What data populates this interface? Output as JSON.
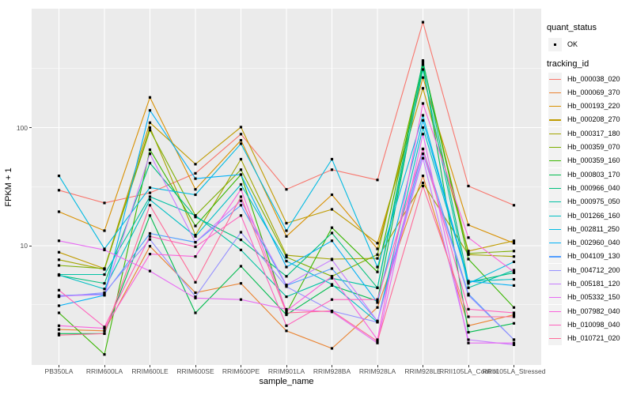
{
  "y_axis": {
    "title": "FPKM + 1",
    "ticks": [
      {
        "label": "100",
        "value": 100
      },
      {
        "label": "10",
        "value": 10
      }
    ],
    "minor_values": [
      316.2,
      31.62,
      3.162
    ]
  },
  "x_axis": {
    "title": "sample_name",
    "categories": [
      "PB350LA",
      "RRIM600LA",
      "RRIM600LE",
      "RRIM600SE",
      "RRIM600PE",
      "RRIM901LA",
      "RRIM928BA",
      "RRIM928LA",
      "RRIM928LE",
      "RRII105LA_Control",
      "RRII105LA_Stressed"
    ]
  },
  "legend": {
    "quant_status": {
      "title": "quant_status",
      "entries": [
        {
          "label": "OK",
          "symbol": "black-point"
        }
      ]
    },
    "tracking_id": {
      "title": "tracking_id"
    }
  },
  "colors": {
    "panel_bg": "#EBEBEB",
    "grid": "#FFFFFF",
    "tick_text": "#4D4D4D",
    "axis_text": "#000000",
    "point": "#000000",
    "legend_key_bg": "#F2F2F2"
  },
  "chart_data": {
    "type": "line",
    "title": "",
    "xlabel": "sample_name",
    "ylabel": "FPKM + 1",
    "y_scale": "log10",
    "ylim": [
      1,
      1000
    ],
    "grid": true,
    "legend_position": "right",
    "point_shape": "small-black-square",
    "categories": [
      "PB350LA",
      "RRIM600LA",
      "RRIM600LE",
      "RRIM600SE",
      "RRIM600PE",
      "RRIM901LA",
      "RRIM928BA",
      "RRIM928LA",
      "RRIM928LE",
      "RRII105LA_Control",
      "RRII105LA_Stressed"
    ],
    "series": [
      {
        "name": "Hb_000038_020",
        "color": "#F8766D",
        "values": [
          29.5,
          23,
          28,
          41,
          88,
          30,
          44,
          36,
          780,
          32,
          22
        ]
      },
      {
        "name": "Hb_000069_370",
        "color": "#EA8331",
        "values": [
          1.95,
          1.9,
          9.9,
          4.0,
          4.8,
          1.9,
          1.35,
          3.0,
          39,
          2.1,
          2.6
        ]
      },
      {
        "name": "Hb_000193_220",
        "color": "#D89000",
        "values": [
          19.4,
          13.4,
          180,
          30,
          78,
          12,
          27,
          9.4,
          265,
          15,
          10.5
        ]
      },
      {
        "name": "Hb_000208_270",
        "color": "#C09B00",
        "values": [
          8.8,
          6.4,
          110,
          49,
          101,
          15.5,
          20.3,
          10.5,
          215,
          9.0,
          11
        ]
      },
      {
        "name": "Hb_000317_180",
        "color": "#A3A500",
        "values": [
          7.6,
          6.3,
          100,
          12.3,
          54,
          8.3,
          7.7,
          7.8,
          34,
          8.4,
          8.1
        ]
      },
      {
        "name": "Hb_000359_070",
        "color": "#7CAE00",
        "values": [
          6.8,
          6.4,
          95,
          18,
          44,
          8.0,
          5.5,
          8.4,
          350,
          8.6,
          9.0
        ]
      },
      {
        "name": "Hb_000359_160",
        "color": "#39B600",
        "values": [
          2.7,
          1.2,
          65,
          14.7,
          40,
          2.7,
          14.2,
          6.0,
          360,
          7.7,
          3.0
        ]
      },
      {
        "name": "Hb_000803_170",
        "color": "#00BB4E",
        "values": [
          1.8,
          1.8,
          18,
          2.7,
          6.7,
          2.6,
          4.6,
          3.4,
          340,
          1.85,
          2.2
        ]
      },
      {
        "name": "Hb_000966_040",
        "color": "#00BF7D",
        "values": [
          5.6,
          4.8,
          50,
          17.5,
          11.2,
          5.5,
          12.8,
          4.4,
          370,
          4.9,
          5.9
        ]
      },
      {
        "name": "Hb_000975_050",
        "color": "#00C1A3",
        "values": [
          5.7,
          5.7,
          26,
          18,
          9.2,
          3.7,
          5.3,
          4.4,
          310,
          4.4,
          6.2
        ]
      },
      {
        "name": "Hb_001266_160",
        "color": "#00BFC4",
        "values": [
          5.65,
          4.3,
          24.5,
          12.0,
          33,
          7.4,
          4.7,
          2.25,
          100,
          5.0,
          5.2
        ]
      },
      {
        "name": "Hb_002811_250",
        "color": "#00BAE2",
        "values": [
          39,
          9.4,
          31,
          27,
          73,
          13.4,
          54,
          6.6,
          127,
          4.8,
          7.3
        ]
      },
      {
        "name": "Hb_002960_040",
        "color": "#00B0F6",
        "values": [
          3.1,
          3.8,
          140,
          37,
          40,
          6.6,
          11,
          3.3,
          115,
          5.0,
          4.6
        ]
      },
      {
        "name": "Hb_004109_130",
        "color": "#529EFF",
        "values": [
          3.78,
          3.9,
          12.7,
          10.7,
          22,
          4.6,
          6.4,
          2.3,
          66,
          3.9,
          1.6
        ]
      },
      {
        "name": "Hb_004712_200",
        "color": "#9590FF",
        "values": [
          3.7,
          4.0,
          11.3,
          3.7,
          13,
          4.5,
          2.8,
          2.25,
          60,
          3.8,
          1.6
        ]
      },
      {
        "name": "Hb_005181_120",
        "color": "#C77CFF",
        "values": [
          3.75,
          3.85,
          60,
          10.7,
          24,
          4.65,
          7.6,
          2.3,
          55,
          1.6,
          1.45
        ]
      },
      {
        "name": "Hb_005332_150",
        "color": "#E76BF3",
        "values": [
          11,
          9.2,
          6.1,
          3.6,
          3.5,
          2.9,
          2.75,
          1.5,
          88,
          1.5,
          1.5
        ]
      },
      {
        "name": "Hb_007982_040",
        "color": "#FA62DB",
        "values": [
          2.1,
          2.0,
          8.5,
          8.1,
          30,
          2.8,
          5.5,
          1.6,
          160,
          11.7,
          6.0
        ]
      },
      {
        "name": "Hb_010098_040",
        "color": "#FF62BC",
        "values": [
          4.2,
          2.05,
          12,
          9.8,
          18,
          2.1,
          3.5,
          3.5,
          66,
          2.9,
          2.7
        ]
      },
      {
        "name": "Hb_010721_020",
        "color": "#FF6A98",
        "values": [
          1.75,
          1.8,
          22,
          4.9,
          26,
          2.7,
          2.8,
          1.55,
          32,
          2.5,
          2.5
        ]
      }
    ]
  }
}
